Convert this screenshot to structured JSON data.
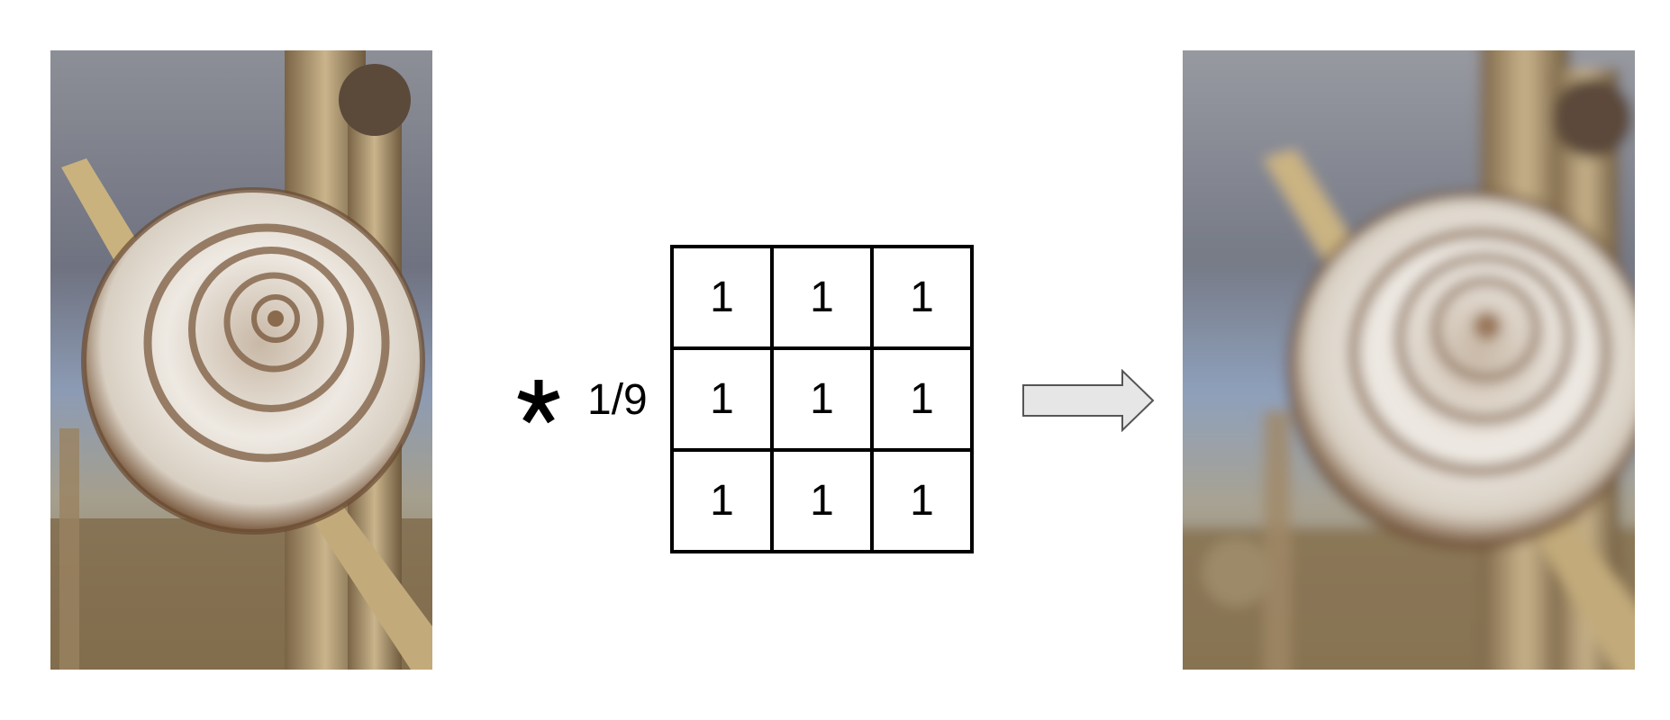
{
  "operator": {
    "asterisk": "*",
    "scale": "1/9"
  },
  "kernel": {
    "rows": [
      [
        "1",
        "1",
        "1"
      ],
      [
        "1",
        "1",
        "1"
      ],
      [
        "1",
        "1",
        "1"
      ]
    ]
  },
  "colors": {
    "arrow_fill": "#e6e6e6",
    "arrow_stroke": "#555555",
    "grid_line": "#000000"
  }
}
